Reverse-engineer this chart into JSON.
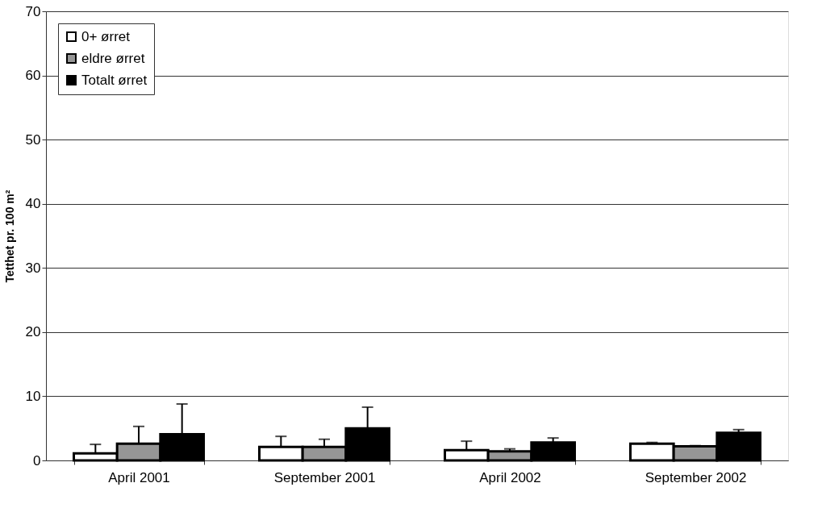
{
  "chart_data": {
    "type": "bar",
    "ylabel": "Tetthet pr. 100 m²",
    "categories": [
      "April 2001",
      "September 2001",
      "April 2002",
      "September 2002"
    ],
    "series": [
      {
        "name": "0+ ørret",
        "color": "#ffffff",
        "values": [
          1.1,
          2.1,
          1.6,
          2.6
        ],
        "errors": [
          [
            1.1,
            2.5
          ],
          [
            2.1,
            3.75
          ],
          [
            1.6,
            3.0
          ],
          [
            2.6,
            2.8
          ]
        ]
      },
      {
        "name": "eldre ørret",
        "color": "#969696",
        "values": [
          2.6,
          2.1,
          1.4,
          2.2
        ],
        "errors": [
          [
            2.6,
            5.3
          ],
          [
            2.1,
            3.3
          ],
          [
            1.4,
            1.8
          ],
          [
            2.2,
            2.3
          ]
        ]
      },
      {
        "name": "Totalt ørret",
        "color": "#000000",
        "values": [
          4.1,
          5.0,
          2.8,
          4.3
        ],
        "errors": [
          [
            4.1,
            8.8
          ],
          [
            5.0,
            8.3
          ],
          [
            2.8,
            3.5
          ],
          [
            4.3,
            4.8
          ]
        ]
      }
    ],
    "ylim": [
      0,
      70
    ],
    "yticks": [
      0,
      10,
      20,
      30,
      40,
      50,
      60,
      70
    ],
    "grid": "y",
    "legend": "top left"
  }
}
